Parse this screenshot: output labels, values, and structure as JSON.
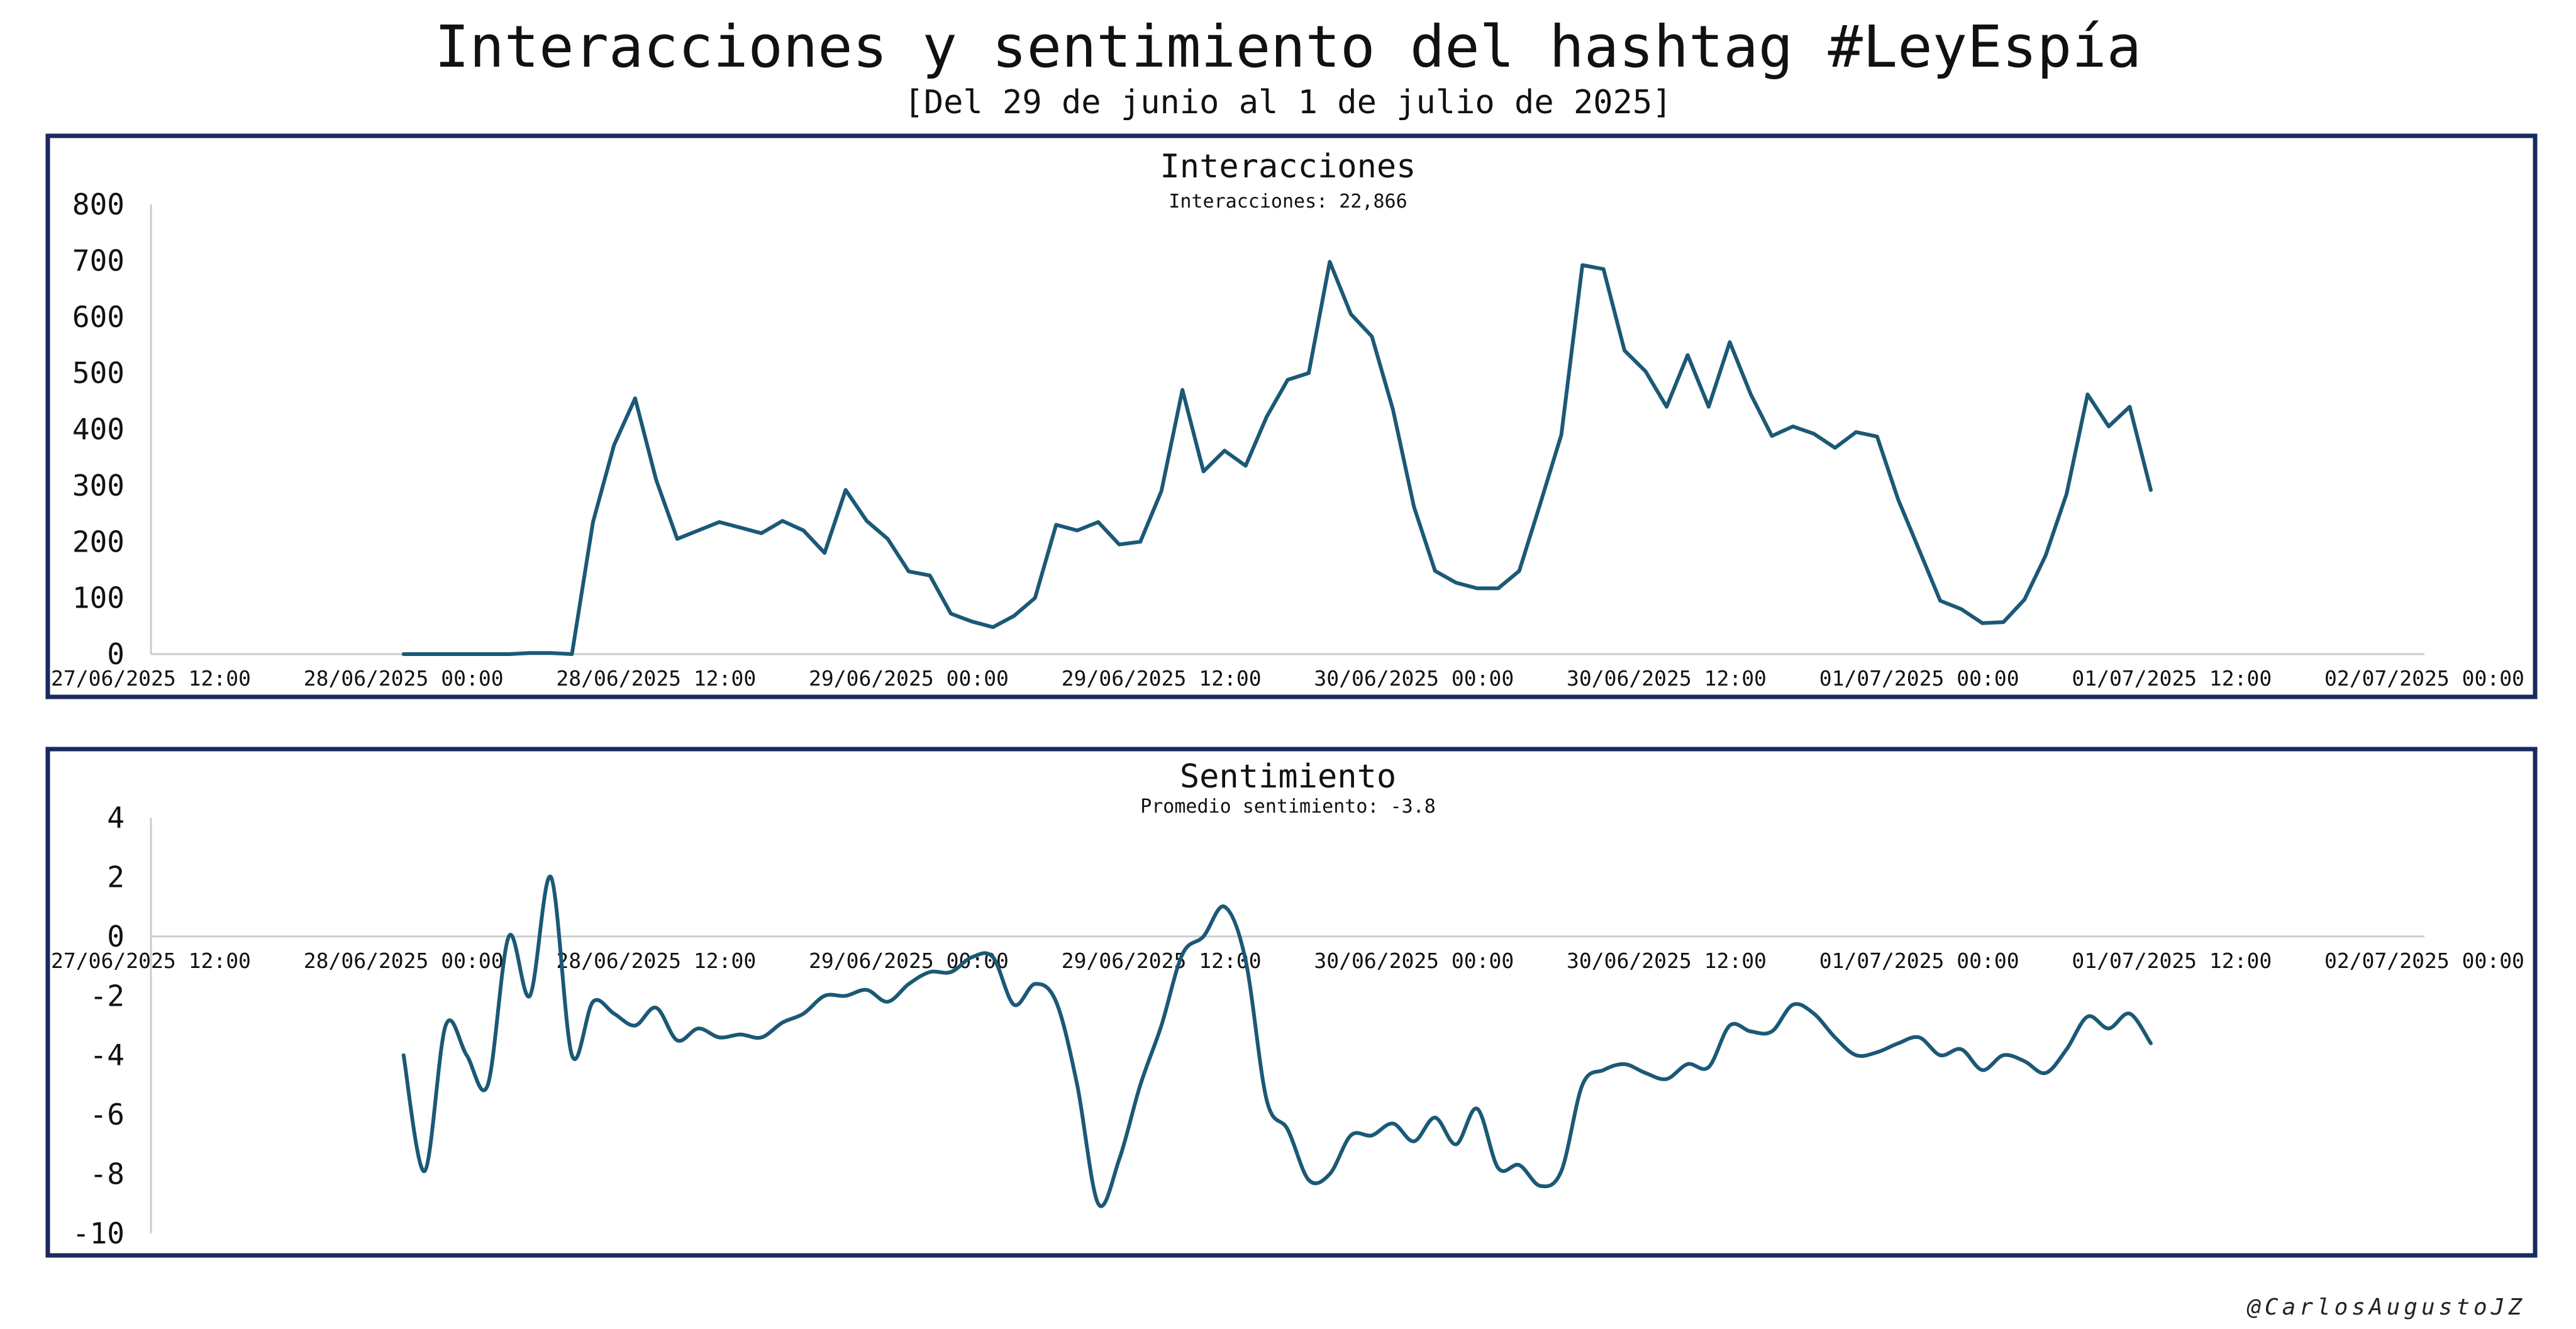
{
  "header": {
    "title": "Interacciones y sentimiento del hashtag #LeyEspía",
    "subtitle": "[Del 29 de junio al 1 de julio de 2025]",
    "credit": "@CarlosAugustoJZ"
  },
  "colors": {
    "line": "#1b5976",
    "frame": "#1a2a5e",
    "axis": "#cccccc",
    "text": "#111111",
    "background": "#ffffff"
  },
  "chart_data": [
    {
      "type": "line",
      "title": "Interacciones",
      "subtitle": "Interacciones: 22,866",
      "grid": false,
      "legend": "none",
      "x_ticks": [
        "27/06/2025 12:00",
        "28/06/2025 00:00",
        "28/06/2025 12:00",
        "29/06/2025 00:00",
        "29/06/2025 12:00",
        "30/06/2025 00:00",
        "30/06/2025 12:00",
        "01/07/2025 00:00",
        "01/07/2025 12:00",
        "02/07/2025 00:00"
      ],
      "xlim": [
        "2025-06-27 12:00",
        "2025-07-02 00:00"
      ],
      "ylim": [
        0,
        800
      ],
      "y_ticks": [
        0,
        100,
        200,
        300,
        400,
        500,
        600,
        700,
        800
      ],
      "start": "2025-06-28 00:00",
      "interval_minutes": 60,
      "values": [
        0,
        0,
        0,
        0,
        0,
        0,
        2,
        2,
        0,
        235,
        372,
        455,
        310,
        205,
        220,
        235,
        225,
        215,
        237,
        220,
        180,
        292,
        237,
        205,
        147,
        140,
        72,
        58,
        48,
        68,
        100,
        230,
        220,
        235,
        195,
        200,
        290,
        470,
        325,
        362,
        335,
        422,
        488,
        500,
        698,
        605,
        565,
        435,
        262,
        148,
        127,
        117,
        117,
        148,
        268,
        390,
        692,
        685,
        540,
        503,
        440,
        532,
        440,
        555,
        462,
        388,
        405,
        392,
        367,
        395,
        387,
        275,
        185,
        95,
        80,
        55,
        57,
        97,
        175,
        285,
        462,
        405,
        440,
        292
      ]
    },
    {
      "type": "line",
      "title": "Sentimiento",
      "subtitle": "Promedio sentimiento:  -3.8",
      "grid": false,
      "legend": "none",
      "x_ticks": [
        "27/06/2025 12:00",
        "28/06/2025 00:00",
        "28/06/2025 12:00",
        "29/06/2025 00:00",
        "29/06/2025 12:00",
        "30/06/2025 00:00",
        "30/06/2025 12:00",
        "01/07/2025 00:00",
        "01/07/2025 12:00",
        "02/07/2025 00:00"
      ],
      "xlim": [
        "2025-06-27 12:00",
        "2025-07-02 00:00"
      ],
      "ylim": [
        -10,
        4
      ],
      "y_ticks": [
        -10,
        -8,
        -6,
        -4,
        -2,
        0,
        2,
        4
      ],
      "start": "2025-06-28 00:00",
      "interval_minutes": 60,
      "values": [
        -4.0,
        -7.9,
        -3.0,
        -4.0,
        -5.0,
        0.0,
        -2.0,
        2.0,
        -4.0,
        -2.2,
        -2.6,
        -3.0,
        -2.4,
        -3.5,
        -3.1,
        -3.4,
        -3.3,
        -3.4,
        -2.9,
        -2.6,
        -2.0,
        -2.0,
        -1.8,
        -2.2,
        -1.6,
        -1.2,
        -1.2,
        -0.7,
        -0.7,
        -2.3,
        -1.6,
        -2.2,
        -5.0,
        -9.0,
        -7.5,
        -5.0,
        -3.0,
        -0.6,
        0.0,
        1.0,
        -0.8,
        -5.5,
        -6.5,
        -8.2,
        -8.0,
        -6.7,
        -6.7,
        -6.3,
        -6.9,
        -6.1,
        -7.0,
        -5.8,
        -7.8,
        -7.7,
        -8.4,
        -7.9,
        -5.0,
        -4.5,
        -4.3,
        -4.6,
        -4.8,
        -4.3,
        -4.4,
        -3.0,
        -3.2,
        -3.2,
        -2.3,
        -2.6,
        -3.4,
        -4.0,
        -3.9,
        -3.6,
        -3.4,
        -4.0,
        -3.8,
        -4.5,
        -4.0,
        -4.2,
        -4.6,
        -3.8,
        -2.7,
        -3.1,
        -2.6,
        -3.6
      ]
    }
  ]
}
